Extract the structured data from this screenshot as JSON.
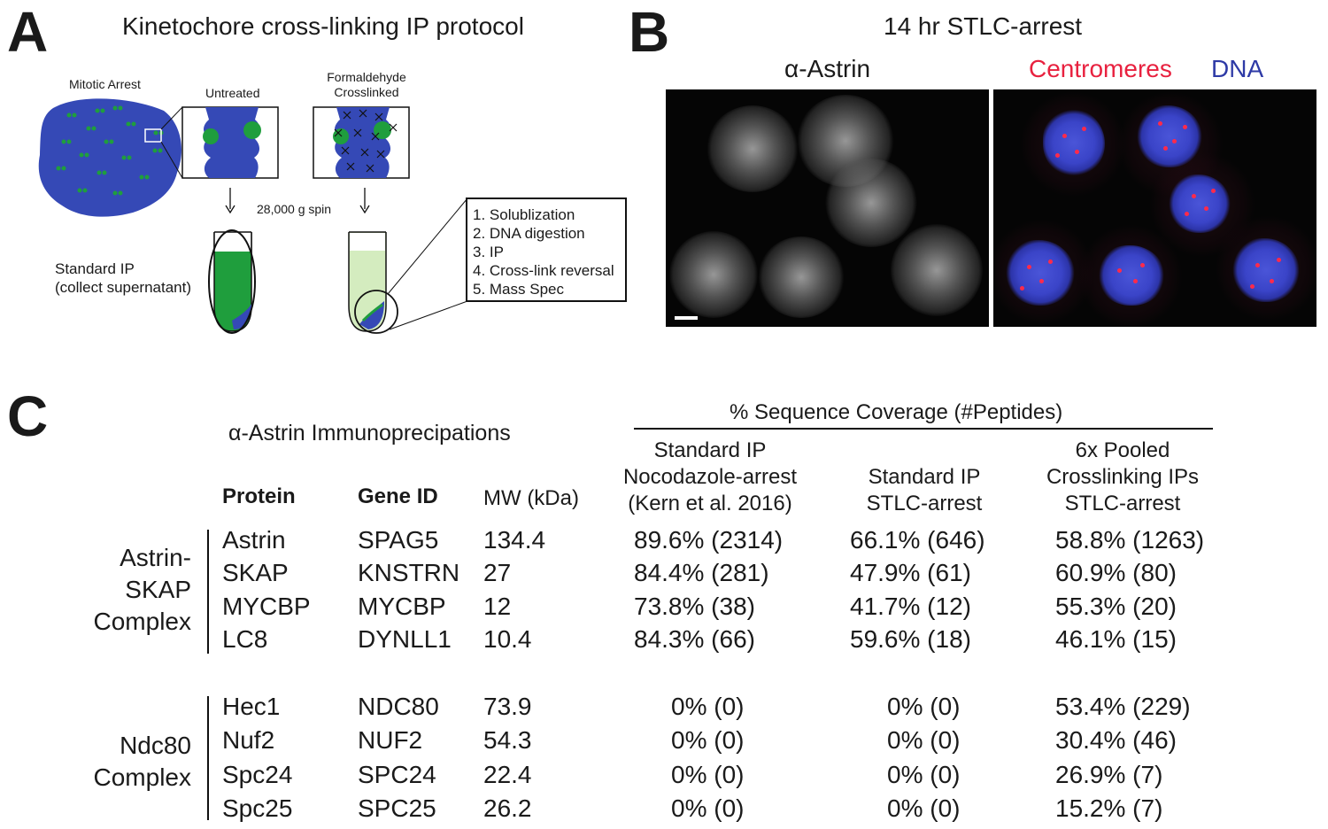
{
  "panelA": {
    "letter": "A",
    "title": "Kinetochore cross-linking IP protocol",
    "mitotic_arrest": "Mitotic Arrest",
    "untreated": "Untreated",
    "formaldehyde_line1": "Formaldehyde",
    "formaldehyde_line2": "Crosslinked",
    "spin": "28,000 g spin",
    "standard_ip_line1": "Standard IP",
    "standard_ip_line2": "(collect supernatant)",
    "steps": [
      "1. Solublization",
      "2. DNA digestion",
      "3. IP",
      "4. Cross-link reversal",
      "5. Mass Spec"
    ],
    "colors": {
      "chromatin": "#3549b6",
      "kinetochore": "#1f9e3d",
      "pellet_fluid": "#d4ecbf"
    }
  },
  "panelB": {
    "letter": "B",
    "title": "14 hr STLC-arrest",
    "left_label": "α-Astrin",
    "right_label_centromeres": "Centromeres",
    "right_label_dna": "DNA",
    "colors": {
      "centromeres": "#e8213f",
      "dna": "#2e3aa6"
    }
  },
  "panelC": {
    "letter": "C",
    "title": "α-Astrin Immunoprecipations",
    "coverage_header": "% Sequence Coverage (#Peptides)",
    "col_headers": {
      "protein": "Protein",
      "gene": "Gene ID",
      "mw": "MW (kDa)",
      "c1": [
        "Standard IP",
        "Nocodazole-arrest",
        "(Kern et al. 2016)"
      ],
      "c2": [
        "Standard IP",
        "STLC-arrest"
      ],
      "c3": [
        "6x Pooled",
        "Crosslinking IPs",
        "STLC-arrest"
      ]
    },
    "groups": [
      {
        "label": [
          "Astrin-",
          "SKAP",
          "Complex"
        ],
        "rows": [
          {
            "protein": "Astrin",
            "gene": "SPAG5",
            "mw": "134.4",
            "c1": "89.6% (2314)",
            "c2": "66.1% (646)",
            "c3": "58.8% (1263)"
          },
          {
            "protein": "SKAP",
            "gene": "KNSTRN",
            "mw": "27",
            "c1": "84.4% (281)",
            "c2": "47.9% (61)",
            "c3": "60.9% (80)"
          },
          {
            "protein": "MYCBP",
            "gene": "MYCBP",
            "mw": "12",
            "c1": "73.8% (38)",
            "c2": "41.7% (12)",
            "c3": "55.3% (20)"
          },
          {
            "protein": "LC8",
            "gene": "DYNLL1",
            "mw": "10.4",
            "c1": "84.3% (66)",
            "c2": "59.6% (18)",
            "c3": "46.1% (15)"
          }
        ]
      },
      {
        "label": [
          "Ndc80",
          "Complex"
        ],
        "rows": [
          {
            "protein": "Hec1",
            "gene": "NDC80",
            "mw": "73.9",
            "c1": "0% (0)",
            "c2": "0% (0)",
            "c3": "53.4% (229)"
          },
          {
            "protein": "Nuf2",
            "gene": "NUF2",
            "mw": "54.3",
            "c1": "0% (0)",
            "c2": "0% (0)",
            "c3": "30.4% (46)"
          },
          {
            "protein": "Spc24",
            "gene": "SPC24",
            "mw": "22.4",
            "c1": "0% (0)",
            "c2": "0% (0)",
            "c3": "26.9% (7)"
          },
          {
            "protein": "Spc25",
            "gene": "SPC25",
            "mw": "26.2",
            "c1": "0% (0)",
            "c2": "0% (0)",
            "c3": "15.2% (7)"
          }
        ]
      }
    ]
  }
}
